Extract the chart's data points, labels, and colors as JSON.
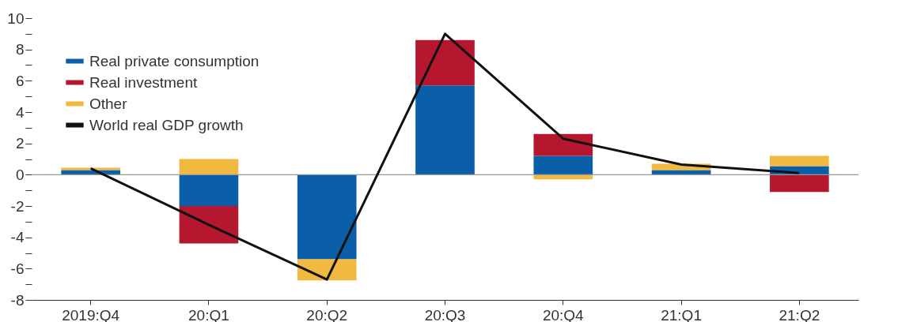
{
  "chart_data": {
    "type": "bar",
    "stacked": true,
    "categories": [
      "2019:Q4",
      "20:Q1",
      "20:Q2",
      "20:Q3",
      "20:Q4",
      "21:Q1",
      "21:Q2"
    ],
    "series": [
      {
        "name": "Real private consumption",
        "color": "#0b5ea8",
        "values": [
          0.3,
          -2.0,
          -5.4,
          5.7,
          1.2,
          0.3,
          0.55
        ]
      },
      {
        "name": "Real investment",
        "color": "#b5172f",
        "values": [
          0,
          -2.4,
          0,
          2.9,
          1.4,
          0,
          -1.1
        ]
      },
      {
        "name": "Other",
        "color": "#f2b940",
        "values": [
          0.15,
          1.0,
          -1.35,
          0,
          -0.3,
          0.4,
          0.65
        ]
      },
      {
        "name": "World real GDP growth",
        "type": "line",
        "color": "#111111",
        "values": [
          0.4,
          -3.2,
          -6.7,
          9.0,
          2.3,
          0.65,
          0.1
        ]
      }
    ],
    "ylim": [
      -8,
      10
    ],
    "yticks": [
      -8,
      {
        "value": -7,
        "label": null
      },
      -6,
      {
        "value": -5,
        "label": null
      },
      -4,
      {
        "value": -3,
        "label": null
      },
      -2,
      {
        "value": -1,
        "label": null
      },
      0,
      {
        "value": 1,
        "label": null
      },
      2,
      {
        "value": 3,
        "label": null
      },
      4,
      {
        "value": 5,
        "label": null
      },
      6,
      {
        "value": 7,
        "label": null
      },
      8,
      {
        "value": 9,
        "label": null
      },
      10
    ],
    "ref_lines": [
      {
        "axis": "y",
        "value": 0,
        "color": "#999999"
      }
    ],
    "grid": false,
    "legend": "top left"
  }
}
